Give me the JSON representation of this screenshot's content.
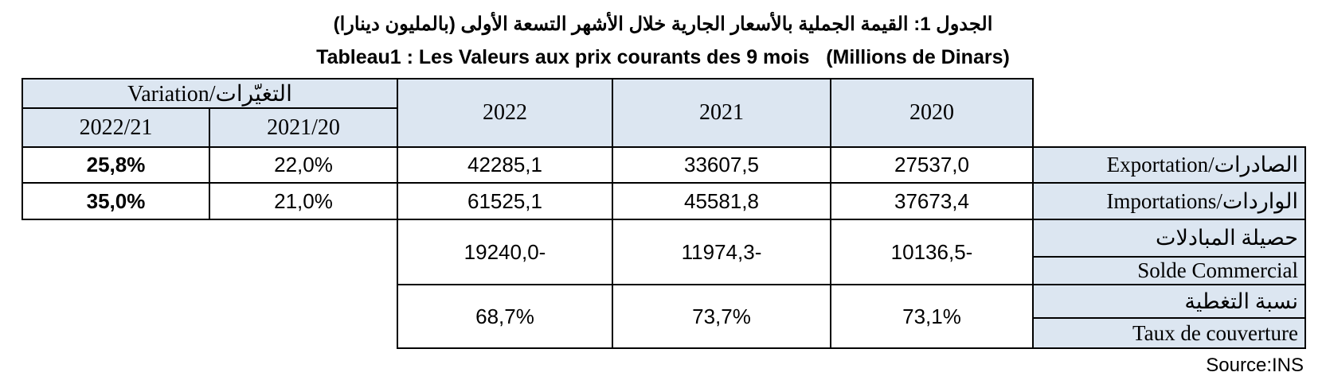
{
  "header": {
    "title_ar": "الجدول 1: القيمة الجملية بالأسعار الجارية خلال الأشهر التسعة الأولى (بالمليون دينارا)",
    "title_fr": "Tableau1 : Les Valeurs aux prix courants des 9 mois   (Millions de Dinars)"
  },
  "table": {
    "variation_header": "Variation/التغيّرات",
    "columns": [
      "2022/21",
      "2021/20",
      "2022",
      "2021",
      "2020"
    ],
    "rows": [
      {
        "label": "Exportation/الصادرات",
        "cells": [
          "25,8%",
          "22,0%",
          "42285,1",
          "33607,5",
          "27537,0"
        ]
      },
      {
        "label": "Importations/الواردات",
        "cells": [
          "35,0%",
          "21,0%",
          "61525,1",
          "45581,8",
          "37673,4"
        ]
      }
    ],
    "balance": {
      "label_ar": "حصيلة المبادلات",
      "label_fr": "Solde Commercial",
      "cells": [
        "19240,0-",
        "11974,3-",
        "10136,5-"
      ]
    },
    "coverage": {
      "label_ar": "نسبة التغطية",
      "label_fr": "Taux de couverture",
      "cells": [
        "68,7%",
        "73,7%",
        "73,1%"
      ]
    }
  },
  "source": "Source:INS"
}
